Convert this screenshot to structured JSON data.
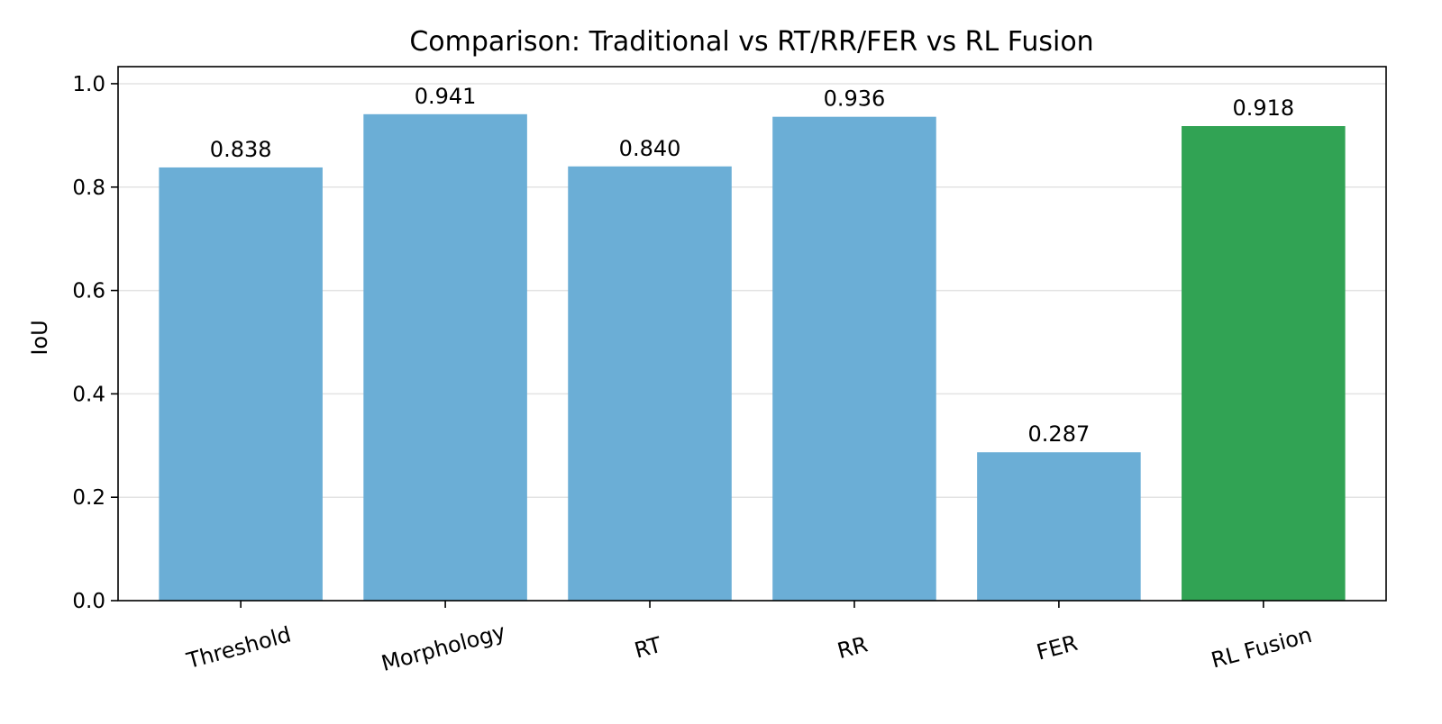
{
  "chart_data": {
    "type": "bar",
    "title": "Comparison: Traditional vs RT/RR/FER vs RL Fusion",
    "xlabel": "",
    "ylabel": "IoU",
    "categories": [
      "Threshold",
      "Morphology",
      "RT",
      "RR",
      "FER",
      "RL Fusion"
    ],
    "values": [
      0.838,
      0.941,
      0.84,
      0.936,
      0.287,
      0.918
    ],
    "value_labels": [
      "0.838",
      "0.941",
      "0.840",
      "0.936",
      "0.287",
      "0.918"
    ],
    "bar_colors": [
      "#6baed6",
      "#6baed6",
      "#6baed6",
      "#6baed6",
      "#6baed6",
      "#31a354"
    ],
    "ylim": [
      0,
      1.033
    ],
    "yticks": [
      0.0,
      0.2,
      0.4,
      0.6,
      0.8,
      1.0
    ],
    "ytick_labels": [
      "0.0",
      "0.2",
      "0.4",
      "0.6",
      "0.8",
      "1.0"
    ],
    "grid": "horizontal",
    "x_tick_rotation_deg": 15,
    "legend": "none"
  }
}
